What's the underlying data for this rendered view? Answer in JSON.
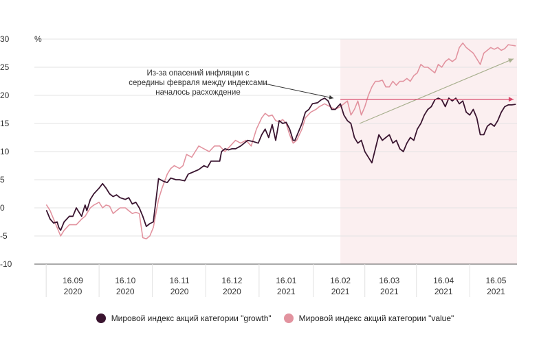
{
  "chart_data": {
    "type": "line",
    "y_unit": "%",
    "ylim": [
      -10,
      30
    ],
    "y_ticks": [
      30,
      25,
      20,
      15,
      10,
      5,
      0,
      -5,
      -10
    ],
    "x_ticks": [
      {
        "x": "2020-09-16",
        "day": "16.09",
        "year": "2020"
      },
      {
        "x": "2020-10-16",
        "day": "16.10",
        "year": "2020"
      },
      {
        "x": "2020-11-16",
        "day": "16.11",
        "year": "2020"
      },
      {
        "x": "2020-12-16",
        "day": "16.12",
        "year": "2020"
      },
      {
        "x": "2021-01-16",
        "day": "16.01",
        "year": "2021"
      },
      {
        "x": "2021-02-16",
        "day": "16.02",
        "year": "2021"
      },
      {
        "x": "2021-03-16",
        "day": "16.03",
        "year": "2021"
      },
      {
        "x": "2021-04-16",
        "day": "16.04",
        "year": "2021"
      },
      {
        "x": "2021-05-16",
        "day": "16.05",
        "year": "2021"
      }
    ],
    "xlim": [
      "2020-08-25",
      "2021-05-28"
    ],
    "shaded_region": {
      "from": "2021-02-16",
      "to": "2021-05-28",
      "color": "#fbeff0"
    },
    "series": [
      {
        "name": "Мировой индекс акций категории \"growth\"",
        "color": "#3a1530",
        "points": [
          [
            "2020-09-01",
            -0.5
          ],
          [
            "2020-09-03",
            -2
          ],
          [
            "2020-09-05",
            -2.7
          ],
          [
            "2020-09-07",
            -2.5
          ],
          [
            "2020-09-08",
            -3.5
          ],
          [
            "2020-09-09",
            -4
          ],
          [
            "2020-09-11",
            -2.5
          ],
          [
            "2020-09-14",
            -1.5
          ],
          [
            "2020-09-16",
            -1.5
          ],
          [
            "2020-09-18",
            0
          ],
          [
            "2020-09-20",
            -1
          ],
          [
            "2020-09-21",
            -1.5
          ],
          [
            "2020-09-23",
            0.5
          ],
          [
            "2020-09-24",
            -0.5
          ],
          [
            "2020-09-26",
            1.5
          ],
          [
            "2020-09-28",
            2.5
          ],
          [
            "2020-10-01",
            3.5
          ],
          [
            "2020-10-03",
            4.3
          ],
          [
            "2020-10-05",
            3.5
          ],
          [
            "2020-10-07",
            2.5
          ],
          [
            "2020-10-09",
            2
          ],
          [
            "2020-10-11",
            2.3
          ],
          [
            "2020-10-13",
            1.8
          ],
          [
            "2020-10-16",
            1.5
          ],
          [
            "2020-10-18",
            1.8
          ],
          [
            "2020-10-20",
            0.7
          ],
          [
            "2020-10-22",
            1
          ],
          [
            "2020-10-24",
            0
          ],
          [
            "2020-10-26",
            -1.5
          ],
          [
            "2020-10-28",
            -3.3
          ],
          [
            "2020-10-30",
            -2.8
          ],
          [
            "2020-11-01",
            -2.5
          ],
          [
            "2020-11-03",
            2.5
          ],
          [
            "2020-11-04",
            5.2
          ],
          [
            "2020-11-07",
            4.7
          ],
          [
            "2020-11-09",
            4.5
          ],
          [
            "2020-11-11",
            5.3
          ],
          [
            "2020-11-14",
            5
          ],
          [
            "2020-11-16",
            5
          ],
          [
            "2020-11-19",
            4.8
          ],
          [
            "2020-11-21",
            6
          ],
          [
            "2020-11-24",
            6.4
          ],
          [
            "2020-11-27",
            6.8
          ],
          [
            "2020-11-30",
            7.5
          ],
          [
            "2020-12-02",
            7.2
          ],
          [
            "2020-12-04",
            8.3
          ],
          [
            "2020-12-07",
            8.3
          ],
          [
            "2020-12-09",
            8.3
          ],
          [
            "2020-12-10",
            10
          ],
          [
            "2020-12-12",
            10.5
          ],
          [
            "2020-12-14",
            10.3
          ],
          [
            "2020-12-16",
            10.5
          ],
          [
            "2020-12-18",
            10.5
          ],
          [
            "2020-12-21",
            11
          ],
          [
            "2020-12-23",
            11.5
          ],
          [
            "2020-12-25",
            12
          ],
          [
            "2020-12-28",
            11.8
          ],
          [
            "2020-12-31",
            11.5
          ],
          [
            "2021-01-02",
            13
          ],
          [
            "2021-01-04",
            14
          ],
          [
            "2021-01-06",
            12.5
          ],
          [
            "2021-01-08",
            14.8
          ],
          [
            "2021-01-10",
            12
          ],
          [
            "2021-01-12",
            15.5
          ],
          [
            "2021-01-14",
            15
          ],
          [
            "2021-01-16",
            15.2
          ],
          [
            "2021-01-18",
            14
          ],
          [
            "2021-01-20",
            12
          ],
          [
            "2021-01-21",
            12
          ],
          [
            "2021-01-23",
            13.5
          ],
          [
            "2021-01-25",
            15
          ],
          [
            "2021-01-27",
            17
          ],
          [
            "2021-01-29",
            17.5
          ],
          [
            "2021-01-31",
            18.5
          ],
          [
            "2021-02-03",
            18.7
          ],
          [
            "2021-02-05",
            19.2
          ],
          [
            "2021-02-07",
            19.5
          ],
          [
            "2021-02-09",
            19
          ],
          [
            "2021-02-11",
            17.5
          ],
          [
            "2021-02-13",
            17.5
          ],
          [
            "2021-02-16",
            18.5
          ],
          [
            "2021-02-18",
            16.5
          ],
          [
            "2021-02-20",
            15.5
          ],
          [
            "2021-02-22",
            15
          ],
          [
            "2021-02-24",
            12.5
          ],
          [
            "2021-02-26",
            11.5
          ],
          [
            "2021-02-28",
            12
          ],
          [
            "2021-03-02",
            10
          ],
          [
            "2021-03-04",
            9
          ],
          [
            "2021-03-06",
            8
          ],
          [
            "2021-03-08",
            10.5
          ],
          [
            "2021-03-10",
            13
          ],
          [
            "2021-03-12",
            12
          ],
          [
            "2021-03-14",
            12.5
          ],
          [
            "2021-03-16",
            13
          ],
          [
            "2021-03-18",
            11.5
          ],
          [
            "2021-03-20",
            12
          ],
          [
            "2021-03-22",
            10.5
          ],
          [
            "2021-03-24",
            10
          ],
          [
            "2021-03-26",
            11.5
          ],
          [
            "2021-03-28",
            12.5
          ],
          [
            "2021-03-30",
            12
          ],
          [
            "2021-04-01",
            14
          ],
          [
            "2021-04-03",
            15
          ],
          [
            "2021-04-05",
            16.5
          ],
          [
            "2021-04-07",
            17.5
          ],
          [
            "2021-04-09",
            18
          ],
          [
            "2021-04-11",
            19.2
          ],
          [
            "2021-04-13",
            19.5
          ],
          [
            "2021-04-15",
            19.2
          ],
          [
            "2021-04-17",
            18
          ],
          [
            "2021-04-19",
            19.5
          ],
          [
            "2021-04-21",
            19
          ],
          [
            "2021-04-23",
            19.5
          ],
          [
            "2021-04-25",
            18.5
          ],
          [
            "2021-04-27",
            19
          ],
          [
            "2021-04-29",
            17
          ],
          [
            "2021-05-01",
            16.5
          ],
          [
            "2021-05-03",
            17.5
          ],
          [
            "2021-05-05",
            16
          ],
          [
            "2021-05-07",
            13
          ],
          [
            "2021-05-09",
            13
          ],
          [
            "2021-05-11",
            14.5
          ],
          [
            "2021-05-13",
            15
          ],
          [
            "2021-05-15",
            14.5
          ],
          [
            "2021-05-17",
            15.5
          ],
          [
            "2021-05-19",
            17
          ],
          [
            "2021-05-21",
            18
          ],
          [
            "2021-05-23",
            18.3
          ],
          [
            "2021-05-25",
            18.3
          ],
          [
            "2021-05-27",
            18.4
          ]
        ]
      },
      {
        "name": "Мировой индекс акций категории \"value\"",
        "color": "#e2939f",
        "points": [
          [
            "2020-09-01",
            0.5
          ],
          [
            "2020-09-03",
            -0.5
          ],
          [
            "2020-09-05",
            -2
          ],
          [
            "2020-09-07",
            -3.5
          ],
          [
            "2020-09-09",
            -5
          ],
          [
            "2020-09-11",
            -4
          ],
          [
            "2020-09-14",
            -3
          ],
          [
            "2020-09-16",
            -3
          ],
          [
            "2020-09-18",
            -3
          ],
          [
            "2020-09-21",
            -2
          ],
          [
            "2020-09-23",
            -1.5
          ],
          [
            "2020-09-26",
            0
          ],
          [
            "2020-09-28",
            0.5
          ],
          [
            "2020-10-01",
            1
          ],
          [
            "2020-10-03",
            0
          ],
          [
            "2020-10-05",
            0.5
          ],
          [
            "2020-10-07",
            0.3
          ],
          [
            "2020-10-09",
            -1
          ],
          [
            "2020-10-11",
            -0.5
          ],
          [
            "2020-10-13",
            0
          ],
          [
            "2020-10-16",
            0
          ],
          [
            "2020-10-18",
            -0.5
          ],
          [
            "2020-10-20",
            -1
          ],
          [
            "2020-10-22",
            -0.8
          ],
          [
            "2020-10-24",
            -1
          ],
          [
            "2020-10-26",
            -5.3
          ],
          [
            "2020-10-28",
            -5.5
          ],
          [
            "2020-10-30",
            -5
          ],
          [
            "2020-11-01",
            -3.5
          ],
          [
            "2020-11-04",
            1.5
          ],
          [
            "2020-11-06",
            3.5
          ],
          [
            "2020-11-09",
            6
          ],
          [
            "2020-11-11",
            7
          ],
          [
            "2020-11-13",
            7.5
          ],
          [
            "2020-11-16",
            7
          ],
          [
            "2020-11-18",
            7.5
          ],
          [
            "2020-11-20",
            9.5
          ],
          [
            "2020-11-23",
            9
          ],
          [
            "2020-11-25",
            10
          ],
          [
            "2020-11-27",
            11
          ],
          [
            "2020-11-30",
            10.5
          ],
          [
            "2020-12-03",
            10
          ],
          [
            "2020-12-06",
            11
          ],
          [
            "2020-12-09",
            11
          ],
          [
            "2020-12-12",
            10
          ],
          [
            "2020-12-15",
            11
          ],
          [
            "2020-12-18",
            12
          ],
          [
            "2020-12-21",
            11.5
          ],
          [
            "2020-12-24",
            12
          ],
          [
            "2020-12-27",
            11
          ],
          [
            "2020-12-30",
            14
          ],
          [
            "2021-01-02",
            16
          ],
          [
            "2021-01-04",
            16.8
          ],
          [
            "2021-01-06",
            16.3
          ],
          [
            "2021-01-08",
            16.5
          ],
          [
            "2021-01-10",
            15.5
          ],
          [
            "2021-01-12",
            15.3
          ],
          [
            "2021-01-14",
            15.7
          ],
          [
            "2021-01-16",
            15
          ],
          [
            "2021-01-18",
            13
          ],
          [
            "2021-01-20",
            11.5
          ],
          [
            "2021-01-22",
            12
          ],
          [
            "2021-01-25",
            14
          ],
          [
            "2021-01-27",
            16
          ],
          [
            "2021-01-30",
            17
          ],
          [
            "2021-02-02",
            17.5
          ],
          [
            "2021-02-04",
            18
          ],
          [
            "2021-02-07",
            18.5
          ],
          [
            "2021-02-10",
            18
          ],
          [
            "2021-02-13",
            17.5
          ],
          [
            "2021-02-16",
            18
          ],
          [
            "2021-02-18",
            18.5
          ],
          [
            "2021-02-20",
            19
          ],
          [
            "2021-02-22",
            16.5
          ],
          [
            "2021-02-24",
            17.5
          ],
          [
            "2021-02-26",
            19
          ],
          [
            "2021-02-28",
            16.5
          ],
          [
            "2021-03-02",
            18
          ],
          [
            "2021-03-04",
            20
          ],
          [
            "2021-03-06",
            21.5
          ],
          [
            "2021-03-08",
            22.5
          ],
          [
            "2021-03-10",
            22.5
          ],
          [
            "2021-03-12",
            22.7
          ],
          [
            "2021-03-14",
            21.5
          ],
          [
            "2021-03-16",
            21.5
          ],
          [
            "2021-03-18",
            22.5
          ],
          [
            "2021-03-20",
            21.8
          ],
          [
            "2021-03-22",
            22.5
          ],
          [
            "2021-03-24",
            22.5
          ],
          [
            "2021-03-26",
            23
          ],
          [
            "2021-03-28",
            22.5
          ],
          [
            "2021-03-30",
            23.5
          ],
          [
            "2021-04-01",
            24
          ],
          [
            "2021-04-03",
            25.5
          ],
          [
            "2021-04-05",
            25
          ],
          [
            "2021-04-07",
            25
          ],
          [
            "2021-04-09",
            24.5
          ],
          [
            "2021-04-11",
            24
          ],
          [
            "2021-04-13",
            25.5
          ],
          [
            "2021-04-15",
            25
          ],
          [
            "2021-04-17",
            26
          ],
          [
            "2021-04-19",
            26.5
          ],
          [
            "2021-04-21",
            26
          ],
          [
            "2021-04-23",
            26.5
          ],
          [
            "2021-04-25",
            28.5
          ],
          [
            "2021-04-27",
            29.3
          ],
          [
            "2021-04-29",
            28.5
          ],
          [
            "2021-05-01",
            28
          ],
          [
            "2021-05-03",
            27.5
          ],
          [
            "2021-05-05",
            26.5
          ],
          [
            "2021-05-07",
            25.5
          ],
          [
            "2021-05-09",
            27.5
          ],
          [
            "2021-05-11",
            28
          ],
          [
            "2021-05-13",
            28.5
          ],
          [
            "2021-05-15",
            28.2
          ],
          [
            "2021-05-17",
            28.5
          ],
          [
            "2021-05-19",
            28
          ],
          [
            "2021-05-21",
            28.3
          ],
          [
            "2021-05-23",
            29
          ],
          [
            "2021-05-25",
            28.9
          ],
          [
            "2021-05-27",
            28.8
          ]
        ]
      }
    ],
    "annotations": {
      "note_lines": [
        "Из-за опасений инфляции с",
        "середины февраля между индексами",
        "началось расхождение"
      ],
      "note_arrow_to": [
        "2021-02-12",
        19.5
      ],
      "value_trend_arrow": {
        "from": [
          "2021-02-27",
          15
        ],
        "to": [
          "2021-05-26",
          26.5
        ],
        "color": "#a9b08f"
      },
      "growth_flat_arrow": {
        "from": [
          "2021-02-16",
          19.3
        ],
        "to": [
          "2021-05-26",
          19.3
        ],
        "color": "#d8496a"
      }
    }
  }
}
